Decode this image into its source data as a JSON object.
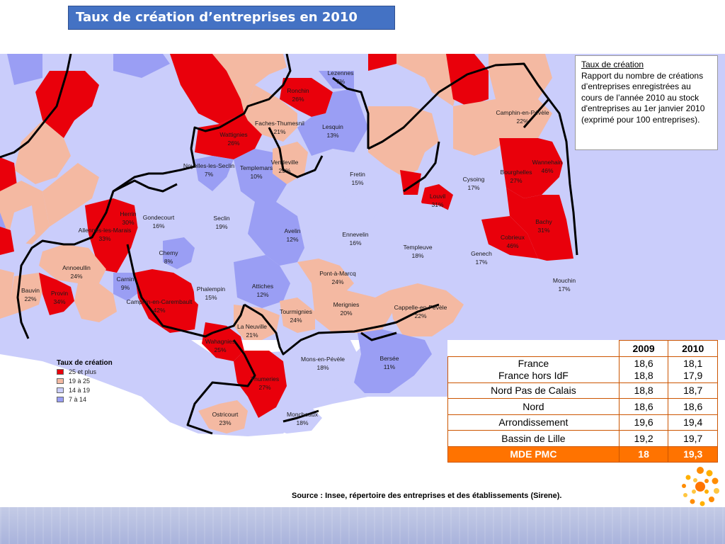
{
  "title": "Taux de création d’entreprises en 2010",
  "colors": {
    "red": "#e9000b",
    "salmon": "#f4b9a2",
    "lavender": "#cacdfb",
    "blue": "#9a9ef4",
    "orange": "#ff7300",
    "title_bg": "#4472c4"
  },
  "definition": {
    "title": "Taux de création",
    "text": "Rapport du nombre de créations d’entreprises enregistrées au cours de l’année 2010 au stock d'entreprises au 1er janvier 2010 (exprimé pour 100 entreprises)."
  },
  "legend": {
    "title": "Taux de création",
    "items": [
      {
        "label": "25 et plus",
        "color": "#e9000b"
      },
      {
        "label": "19 à 25",
        "color": "#f4b9a2"
      },
      {
        "label": "14 à 19",
        "color": "#cacdfb"
      },
      {
        "label": "7 à 14",
        "color": "#9a9ef4"
      }
    ]
  },
  "communes": [
    {
      "name": "Lezennes",
      "value": "7%"
    },
    {
      "name": "Ronchin",
      "value": "26%"
    },
    {
      "name": "Faches-Thumesnil",
      "value": "21%"
    },
    {
      "name": "Lesquin",
      "value": "13%"
    },
    {
      "name": "Wattignies",
      "value": "26%"
    },
    {
      "name": "Vendeville",
      "value": "23%"
    },
    {
      "name": "Templemars",
      "value": "10%"
    },
    {
      "name": "Noyelles-les-Seclin",
      "value": "7%"
    },
    {
      "name": "Fretin",
      "value": "15%"
    },
    {
      "name": "Camphin-en-Pévèle",
      "value": "22%"
    },
    {
      "name": "Wannehain",
      "value": "46%"
    },
    {
      "name": "Bourghelles",
      "value": "27%"
    },
    {
      "name": "Cysoing",
      "value": "17%"
    },
    {
      "name": "Louvil",
      "value": "31%"
    },
    {
      "name": "Bachy",
      "value": "31%"
    },
    {
      "name": "Cobrieux",
      "value": "46%"
    },
    {
      "name": "Herrin",
      "value": "30%"
    },
    {
      "name": "Gondecourt",
      "value": "16%"
    },
    {
      "name": "Allennes-les-Marais",
      "value": "33%"
    },
    {
      "name": "Seclin",
      "value": "19%"
    },
    {
      "name": "Avelin",
      "value": "12%"
    },
    {
      "name": "Ennevelin",
      "value": "16%"
    },
    {
      "name": "Templeuve",
      "value": "18%"
    },
    {
      "name": "Genech",
      "value": "17%"
    },
    {
      "name": "Chemy",
      "value": "8%"
    },
    {
      "name": "Annoeullin",
      "value": "24%"
    },
    {
      "name": "Carnin",
      "value": "9%"
    },
    {
      "name": "Bauvin",
      "value": "22%"
    },
    {
      "name": "Provin",
      "value": "34%"
    },
    {
      "name": "Camphin-en-Carembault",
      "value": "42%"
    },
    {
      "name": "Phalempin",
      "value": "15%"
    },
    {
      "name": "Attiches",
      "value": "12%"
    },
    {
      "name": "Pont-à-Marcq",
      "value": "24%"
    },
    {
      "name": "Mouchin",
      "value": "17%"
    },
    {
      "name": "Merignies",
      "value": "20%"
    },
    {
      "name": "Cappelle-en-Pévèle",
      "value": "22%"
    },
    {
      "name": "Tourmignies",
      "value": "24%"
    },
    {
      "name": "La Neuville",
      "value": "21%"
    },
    {
      "name": "Wahagnies",
      "value": "25%"
    },
    {
      "name": "Mons-en-Pévèle",
      "value": "18%"
    },
    {
      "name": "Bersée",
      "value": "11%"
    },
    {
      "name": "Thumeries",
      "value": "27%"
    },
    {
      "name": "Ostricourt",
      "value": "23%"
    },
    {
      "name": "Moncheaux",
      "value": "18%"
    }
  ],
  "table": {
    "headers": [
      "",
      "2009",
      "2010"
    ],
    "rows": [
      {
        "label": "France",
        "v2009": "18,6",
        "v2010": "18,1"
      },
      {
        "label": "France hors IdF",
        "v2009": "18,8",
        "v2010": "17,9"
      },
      {
        "label": "Nord Pas de Calais",
        "v2009": "18,8",
        "v2010": "18,7"
      },
      {
        "label": "Nord",
        "v2009": "18,6",
        "v2010": "18,6"
      },
      {
        "label": "Arrondissement",
        "v2009": "19,6",
        "v2010": "19,4"
      },
      {
        "label": "Bassin de Lille",
        "v2009": "19,2",
        "v2010": "19,7"
      },
      {
        "label": "MDE PMC",
        "v2009": "18",
        "v2010": "19,3"
      }
    ]
  },
  "source": "Source : Insee, répertoire des entreprises et des établissements (Sirene)."
}
